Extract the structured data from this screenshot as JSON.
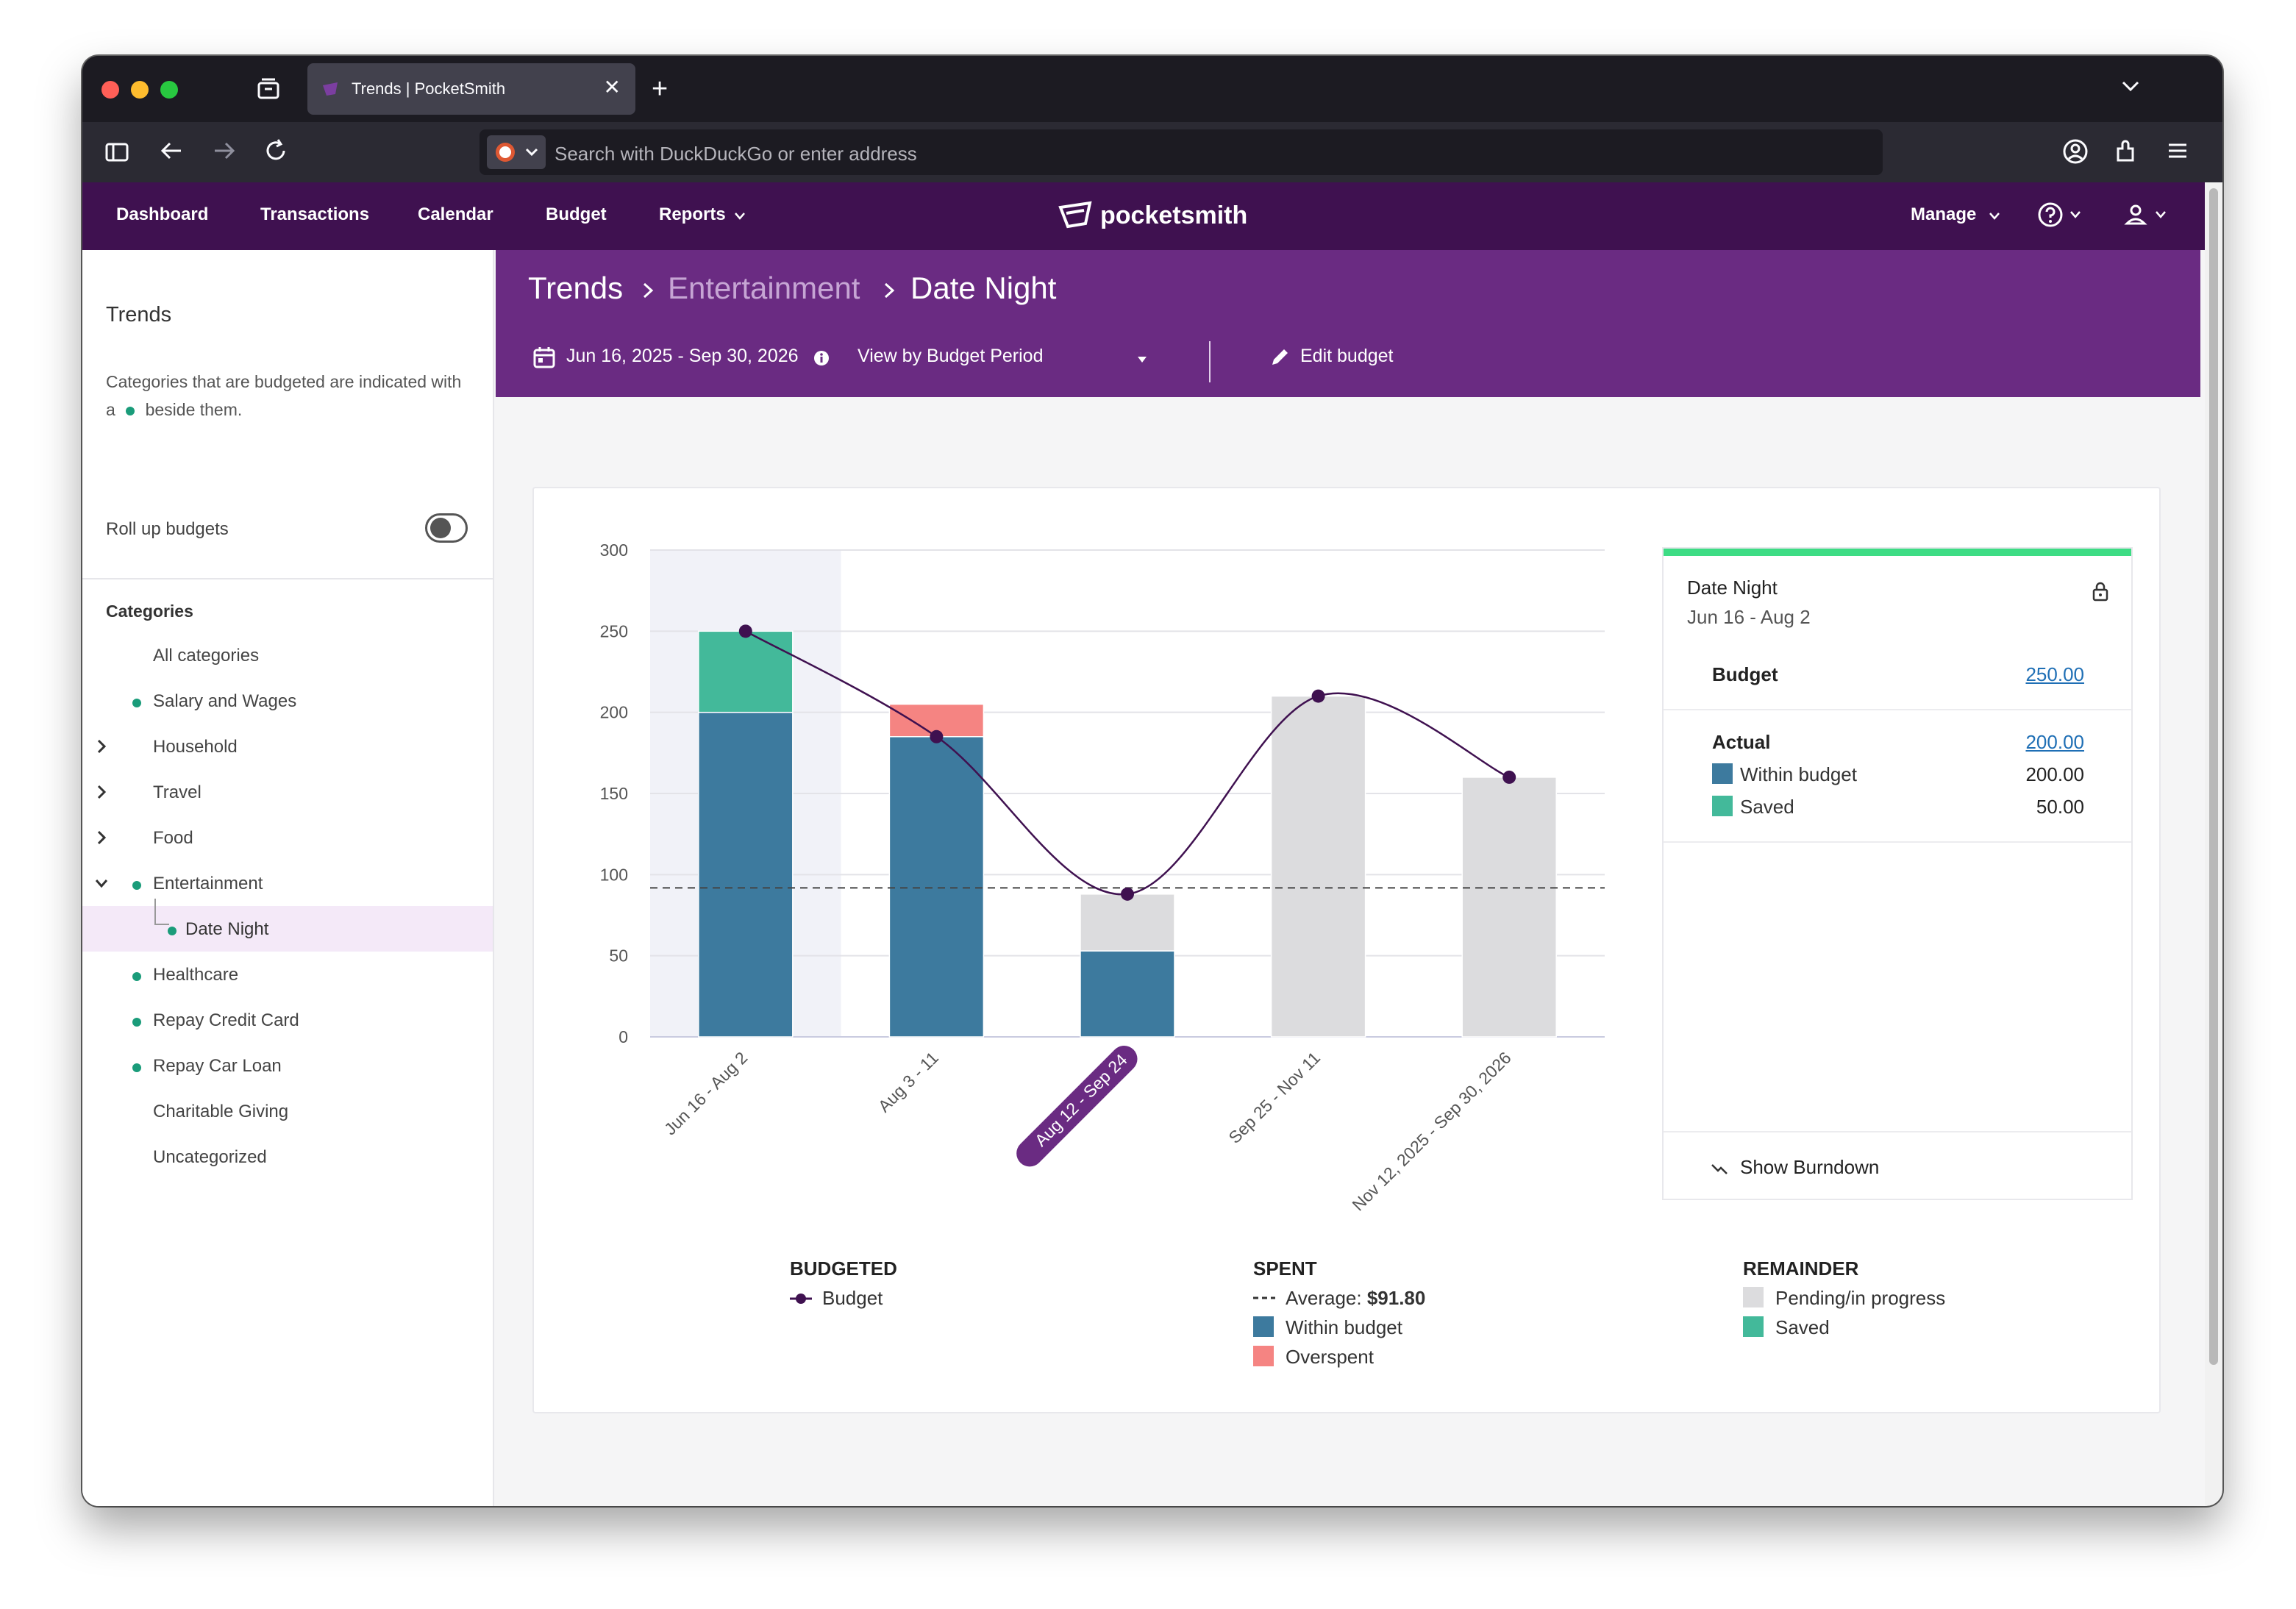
{
  "browser": {
    "tab_title": "Trends | PocketSmith",
    "address_placeholder": "Search with DuckDuckGo or enter address"
  },
  "app": {
    "logo": "pocketsmith",
    "nav": {
      "dashboard": "Dashboard",
      "transactions": "Transactions",
      "calendar": "Calendar",
      "budget": "Budget",
      "reports": "Reports",
      "manage": "Manage"
    }
  },
  "sidebar": {
    "title": "Trends",
    "desc_before": "Categories that are budgeted are indicated with a",
    "desc_after": "beside them.",
    "rollup_label": "Roll up budgets",
    "categories_heading": "Categories",
    "categories": [
      {
        "label": "All categories",
        "budgeted": false,
        "expandable": false
      },
      {
        "label": "Salary and Wages",
        "budgeted": true,
        "expandable": false
      },
      {
        "label": "Household",
        "budgeted": false,
        "expandable": true
      },
      {
        "label": "Travel",
        "budgeted": false,
        "expandable": true
      },
      {
        "label": "Food",
        "budgeted": false,
        "expandable": true
      },
      {
        "label": "Entertainment",
        "budgeted": true,
        "expandable": true,
        "expanded": true
      },
      {
        "label": "Date Night",
        "budgeted": true,
        "child": true,
        "selected": true
      },
      {
        "label": "Healthcare",
        "budgeted": true,
        "expandable": false
      },
      {
        "label": "Repay Credit Card",
        "budgeted": true,
        "expandable": false
      },
      {
        "label": "Repay Car Loan",
        "budgeted": true,
        "expandable": false
      },
      {
        "label": "Charitable Giving",
        "budgeted": false,
        "expandable": false
      },
      {
        "label": "Uncategorized",
        "budgeted": false,
        "expandable": false
      }
    ]
  },
  "header": {
    "crumb1": "Trends",
    "crumb2": "Entertainment",
    "crumb3": "Date Night",
    "date_range": "Jun 16, 2025 - Sep 30, 2026",
    "view_by": "View by Budget Period",
    "edit_budget": "Edit budget"
  },
  "chart_data": {
    "type": "bar",
    "categories": [
      "Jun 16 - Aug 2",
      "Aug 3 - 11",
      "Aug 12 - Sep 24",
      "Sep 25 - Nov 11",
      "Nov 12, 2025 - Sep 30, 2026"
    ],
    "highlighted_category": "Aug 12 - Sep 24",
    "selected_category": "Jun 16 - Aug 2",
    "ylim": [
      0,
      300
    ],
    "yticks": [
      0,
      50,
      100,
      150,
      200,
      250,
      300
    ],
    "stacked": true,
    "series": [
      {
        "name": "Within budget",
        "color": "#3d7a9e",
        "values": [
          200,
          185,
          53,
          0,
          0
        ]
      },
      {
        "name": "Overspent",
        "color": "#f58482",
        "values": [
          0,
          20,
          0,
          0,
          0
        ]
      },
      {
        "name": "Saved",
        "color": "#43b99a",
        "values": [
          50,
          0,
          0,
          0,
          0
        ]
      },
      {
        "name": "Pending/in progress",
        "color": "#dcdcde",
        "values": [
          0,
          0,
          35,
          210,
          160
        ]
      }
    ],
    "budget_line": {
      "name": "Budget",
      "color": "#3f1150",
      "values": [
        250,
        185,
        88,
        210,
        160
      ]
    },
    "average": {
      "value": 91.8,
      "label": "Average:",
      "display": "$91.80"
    },
    "legend": {
      "budgeted_heading": "BUDGETED",
      "spent_heading": "SPENT",
      "remainder_heading": "REMAINDER",
      "budget": "Budget",
      "within": "Within budget",
      "overspent": "Overspent",
      "pending": "Pending/in progress",
      "saved": "Saved"
    }
  },
  "detail": {
    "title": "Date Night",
    "period": "Jun 16 - Aug 2",
    "budget_label": "Budget",
    "budget_value": "250.00",
    "actual_label": "Actual",
    "actual_value": "200.00",
    "within_label": "Within budget",
    "within_value": "200.00",
    "saved_label": "Saved",
    "saved_value": "50.00",
    "burndown": "Show Burndown"
  }
}
